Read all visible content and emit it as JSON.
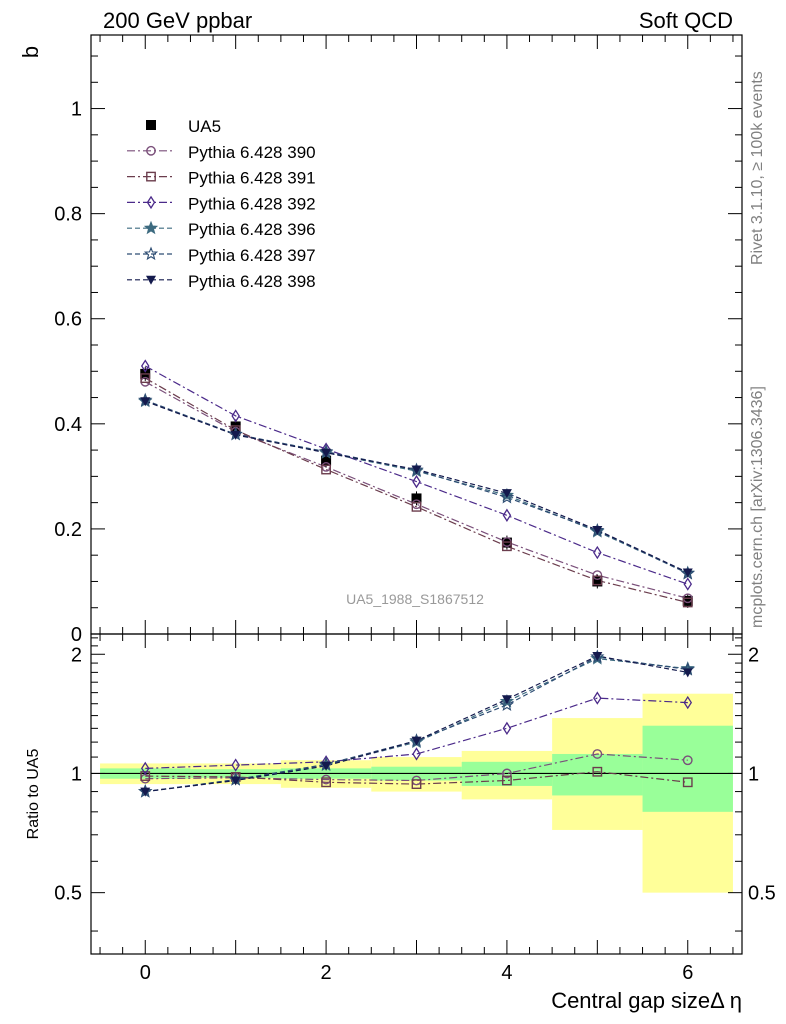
{
  "header": {
    "left": "200 GeV ppbar",
    "right": "Soft QCD"
  },
  "side_labels": {
    "rivet": "Rivet 3.1.10, ≥ 100k events",
    "mcplots": "mcplots.cern.ch [arXiv:1306.3436]"
  },
  "watermark": "UA5_1988_S1867512",
  "colors": {
    "data": "#000000",
    "p390": "#7a4f7a",
    "p391": "#6b3d4d",
    "p392": "#4b2a8a",
    "p396": "#3d6b80",
    "p397": "#2e4d73",
    "p398": "#141a4d",
    "band_outer": "#ffff99",
    "band_inner": "#99ff99"
  },
  "chart_data": [
    {
      "type": "line",
      "name": "main",
      "ylabel": "b",
      "xlim": [
        -0.6,
        6.6
      ],
      "ylim": [
        0,
        1.14
      ],
      "yticks": [
        0,
        0.2,
        0.4,
        0.6,
        0.8,
        1
      ],
      "ytick_labels": [
        "0",
        "0.2",
        "0.4",
        "0.6",
        "0.8",
        "1"
      ],
      "x": [
        0,
        1,
        2,
        3,
        4,
        5,
        6
      ],
      "data": {
        "name": "UA5",
        "values": [
          0.495,
          0.395,
          0.33,
          0.258,
          0.174,
          0.1,
          0.063
        ]
      },
      "series": [
        {
          "name": "Pythia 6.428 390",
          "key": "p390",
          "marker": "circle",
          "dash": "8,3,2,3",
          "values": [
            0.48,
            0.385,
            0.318,
            0.247,
            0.175,
            0.112,
            0.068
          ]
        },
        {
          "name": "Pythia 6.428 391",
          "key": "p391",
          "marker": "square",
          "dash": "8,3,2,3",
          "values": [
            0.487,
            0.388,
            0.313,
            0.242,
            0.167,
            0.102,
            0.06
          ]
        },
        {
          "name": "Pythia 6.428 392",
          "key": "p392",
          "marker": "diamond",
          "dash": "8,3,2,3",
          "values": [
            0.51,
            0.415,
            0.352,
            0.29,
            0.226,
            0.155,
            0.095
          ]
        },
        {
          "name": "Pythia 6.428 396",
          "key": "p396",
          "marker": "star",
          "dash": "5,3",
          "values": [
            0.443,
            0.38,
            0.345,
            0.31,
            0.264,
            0.195,
            0.116
          ]
        },
        {
          "name": "Pythia 6.428 397",
          "key": "p397",
          "marker": "star-open",
          "dash": "5,3",
          "values": [
            0.445,
            0.38,
            0.347,
            0.312,
            0.26,
            0.197,
            0.115
          ]
        },
        {
          "name": "Pythia 6.428 398",
          "key": "p398",
          "marker": "triangle-down",
          "dash": "5,3",
          "values": [
            0.443,
            0.379,
            0.345,
            0.313,
            0.268,
            0.198,
            0.117
          ]
        }
      ]
    },
    {
      "type": "line",
      "name": "ratio",
      "ylabel": "Ratio to UA5",
      "xlabel": "Central gap sizeΔ η",
      "xlim": [
        -0.6,
        6.6
      ],
      "ylim": [
        0.35,
        2.25
      ],
      "xticks": [
        0,
        2,
        4,
        6
      ],
      "xtick_labels": [
        "0",
        "2",
        "4",
        "6"
      ],
      "yticks": [
        0.5,
        1,
        2
      ],
      "ytick_labels": [
        "0.5",
        "1",
        "2"
      ],
      "bands": {
        "inner": [
          [
            0.97,
            1.03
          ],
          [
            0.975,
            1.025
          ],
          [
            0.97,
            1.03
          ],
          [
            0.96,
            1.04
          ],
          [
            0.93,
            1.07
          ],
          [
            0.88,
            1.12
          ],
          [
            0.8,
            1.32
          ]
        ],
        "outer": [
          [
            0.94,
            1.06
          ],
          [
            0.94,
            1.06
          ],
          [
            0.92,
            1.08
          ],
          [
            0.9,
            1.1
          ],
          [
            0.86,
            1.14
          ],
          [
            0.72,
            1.38
          ],
          [
            0.5,
            1.59
          ]
        ]
      },
      "series": [
        {
          "name": "Pythia 6.428 390",
          "key": "p390",
          "values": [
            0.97,
            0.975,
            0.965,
            0.96,
            1.0,
            1.12,
            1.08
          ]
        },
        {
          "name": "Pythia 6.428 391",
          "key": "p391",
          "values": [
            0.985,
            0.98,
            0.95,
            0.94,
            0.96,
            1.01,
            0.95
          ]
        },
        {
          "name": "Pythia 6.428 392",
          "key": "p392",
          "values": [
            1.03,
            1.05,
            1.07,
            1.12,
            1.3,
            1.55,
            1.51
          ]
        },
        {
          "name": "Pythia 6.428 396",
          "key": "p396",
          "values": [
            0.9,
            0.965,
            1.05,
            1.2,
            1.52,
            1.95,
            1.84
          ]
        },
        {
          "name": "Pythia 6.428 397",
          "key": "p397",
          "values": [
            0.9,
            0.965,
            1.055,
            1.21,
            1.49,
            1.97,
            1.83
          ]
        },
        {
          "name": "Pythia 6.428 398",
          "key": "p398",
          "values": [
            0.9,
            0.96,
            1.045,
            1.21,
            1.54,
            1.98,
            1.8
          ]
        }
      ]
    }
  ]
}
